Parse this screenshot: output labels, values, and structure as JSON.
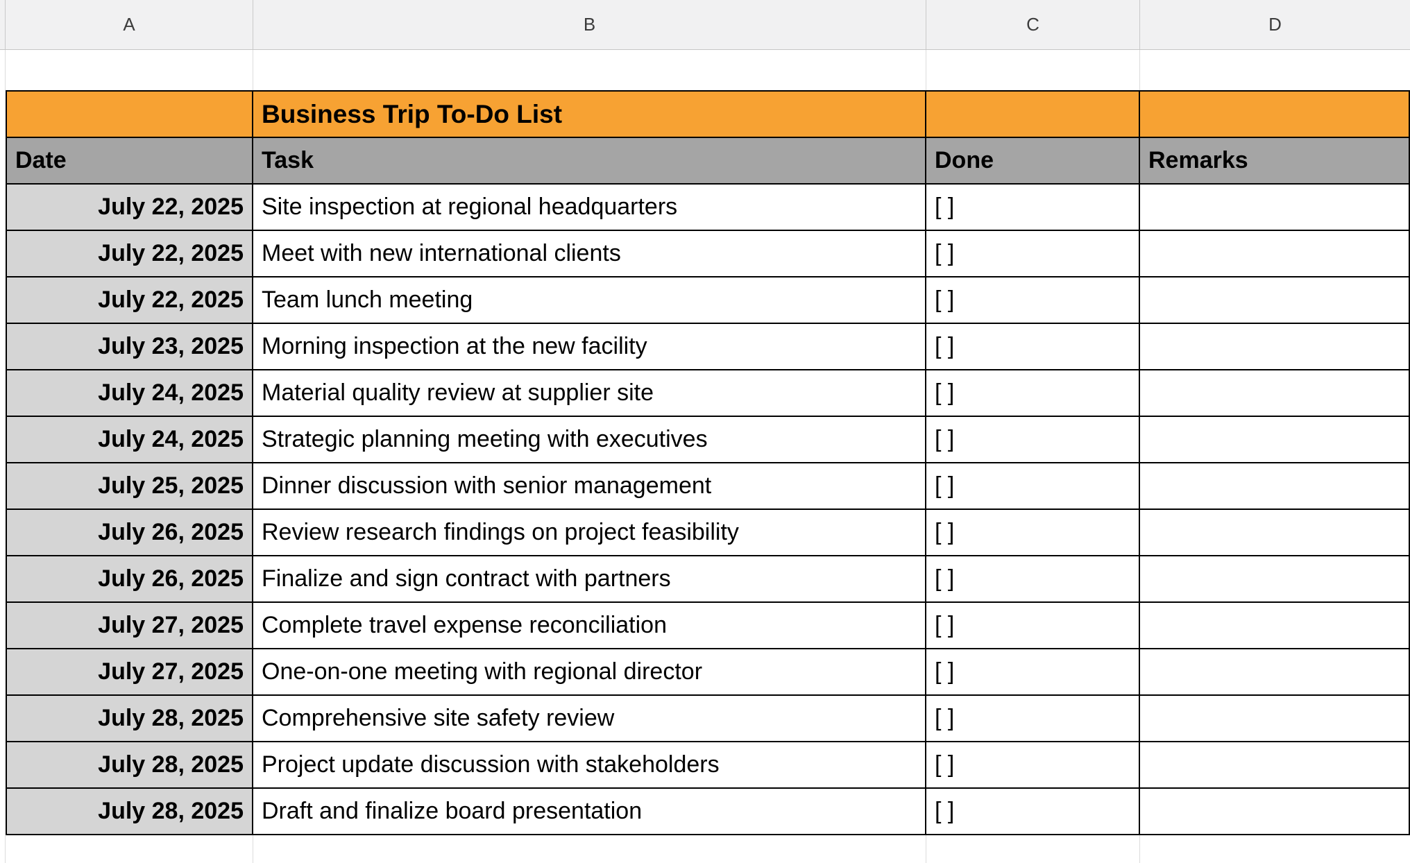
{
  "chrome": {
    "columns": [
      "A",
      "B",
      "C",
      "D"
    ]
  },
  "title": "Business Trip To-Do List",
  "headers": {
    "date": "Date",
    "task": "Task",
    "done": "Done",
    "remarks": "Remarks"
  },
  "rows": [
    {
      "date": "July 22, 2025",
      "task": "Site inspection at regional headquarters",
      "done": "[ ]",
      "remarks": ""
    },
    {
      "date": "July 22, 2025",
      "task": "Meet with new international clients",
      "done": "[ ]",
      "remarks": ""
    },
    {
      "date": "July 22, 2025",
      "task": "Team lunch meeting",
      "done": "[ ]",
      "remarks": ""
    },
    {
      "date": "July 23, 2025",
      "task": "Morning inspection at the new facility",
      "done": "[ ]",
      "remarks": ""
    },
    {
      "date": "July 24, 2025",
      "task": "Material quality review at supplier site",
      "done": "[ ]",
      "remarks": ""
    },
    {
      "date": "July 24, 2025",
      "task": "Strategic planning meeting with executives",
      "done": "[ ]",
      "remarks": ""
    },
    {
      "date": "July 25, 2025",
      "task": "Dinner discussion with senior management",
      "done": "[ ]",
      "remarks": ""
    },
    {
      "date": "July 26, 2025",
      "task": "Review research findings on project feasibility",
      "done": "[ ]",
      "remarks": ""
    },
    {
      "date": "July 26, 2025",
      "task": "Finalize and sign contract with partners",
      "done": "[ ]",
      "remarks": ""
    },
    {
      "date": "July 27, 2025",
      "task": "Complete travel expense reconciliation",
      "done": "[ ]",
      "remarks": ""
    },
    {
      "date": "July 27, 2025",
      "task": "One-on-one meeting with regional director",
      "done": "[ ]",
      "remarks": ""
    },
    {
      "date": "July 28, 2025",
      "task": "Comprehensive site safety review",
      "done": "[ ]",
      "remarks": ""
    },
    {
      "date": "July 28, 2025",
      "task": "Project update discussion with stakeholders",
      "done": "[ ]",
      "remarks": ""
    },
    {
      "date": "July 28, 2025",
      "task": "Draft and finalize board presentation",
      "done": "[ ]",
      "remarks": ""
    }
  ],
  "colors": {
    "title_row": "#F7A233",
    "header_row": "#A5A5A5",
    "date_cell": "#D5D5D5",
    "grid_border": "#000000",
    "chrome_bg": "#F1F1F2"
  }
}
